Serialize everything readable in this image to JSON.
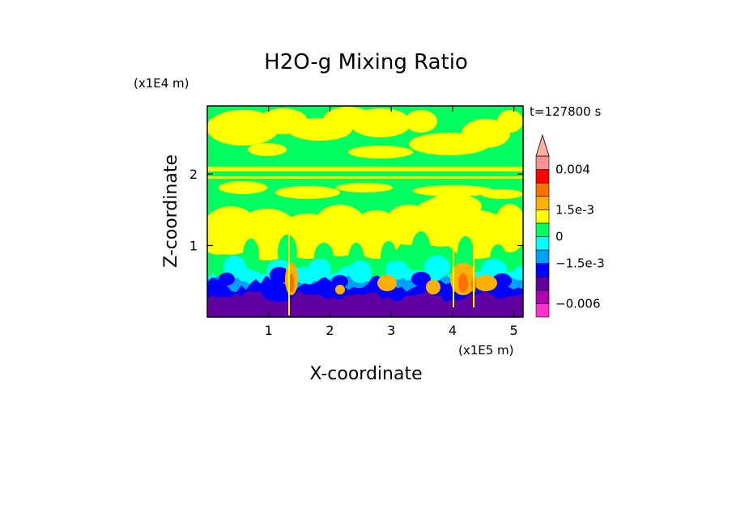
{
  "chart_data": {
    "type": "heatmap",
    "title": "H2O-g Mixing Ratio",
    "xlabel": "X-coordinate",
    "ylabel": "Z-coordinate",
    "x_unit": "(x1E5 m)",
    "y_unit": "(x1E4 m)",
    "time_label": "t=127800 s",
    "xlim": [
      0,
      5.15
    ],
    "ylim": [
      0,
      2.95
    ],
    "x_ticks": [
      "1",
      "2",
      "3",
      "4",
      "5"
    ],
    "y_ticks": [
      "1",
      "2"
    ],
    "x_tick_values": [
      1,
      2,
      3,
      4,
      5
    ],
    "y_tick_values": [
      1,
      2
    ],
    "colorbar": {
      "labels": [
        {
          "text": "0.004",
          "value": 0.004
        },
        {
          "text": "1.5e-3",
          "value": 0.0015
        },
        {
          "text": "0",
          "value": 0
        },
        {
          "text": "−1.5e-3",
          "value": -0.0015
        },
        {
          "text": "−0.006",
          "value": -0.006
        }
      ],
      "colors": [
        "#ff33cc",
        "#b000b0",
        "#6000a0",
        "#0000ff",
        "#00a0ff",
        "#00ffff",
        "#00ff60",
        "#ffff00",
        "#ffb000",
        "#ff7000",
        "#ff0000",
        "#ff9090"
      ],
      "extend_top": true
    },
    "palette": {
      "magenta": "#ff33cc",
      "purple": "#6000a0",
      "darkviolet": "#b000b0",
      "blue": "#0000ff",
      "skyblue": "#00a0ff",
      "cyan": "#00ffff",
      "green": "#00ff60",
      "yellow": "#ffff00",
      "orange": "#ffb000",
      "darkorange": "#ff7000",
      "red": "#ff0000",
      "pink": "#ff9090"
    }
  }
}
